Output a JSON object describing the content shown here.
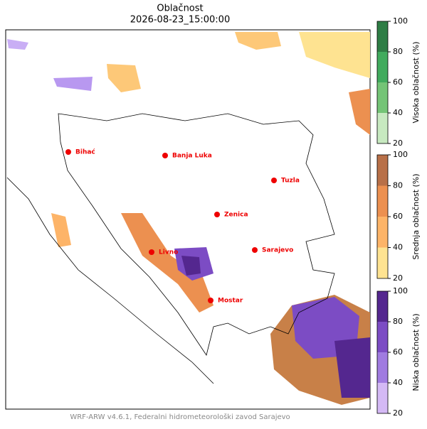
{
  "title": "Oblačnost",
  "timestamp": "2026-08-23_15:00:00",
  "cities": [
    "Bihać",
    "Banja Luka",
    "Tuzla",
    "Zenica",
    "Livno",
    "Sarajevo",
    "Mostar"
  ],
  "colorbars": [
    {
      "label": "Visoka oblačnost (%)",
      "ticks": [
        20,
        40,
        60,
        80,
        100
      ],
      "colors": [
        "#c7e9c0",
        "#74c476",
        "#41ab5d",
        "#2e7d45"
      ]
    },
    {
      "label": "Srednja oblačnost (%)",
      "ticks": [
        20,
        40,
        60,
        80,
        100
      ],
      "colors": [
        "#fee391",
        "#fdb468",
        "#ec9050",
        "#b87048"
      ]
    },
    {
      "label": "Niska oblačnost (%)",
      "ticks": [
        20,
        40,
        60,
        80,
        100
      ],
      "colors": [
        "#d4b9f5",
        "#a07be0",
        "#7c4cc4",
        "#54278f"
      ]
    }
  ],
  "footer": "WRF-ARW v4.6.1, Federalni hidrometeorološki zavod Sarajevo"
}
